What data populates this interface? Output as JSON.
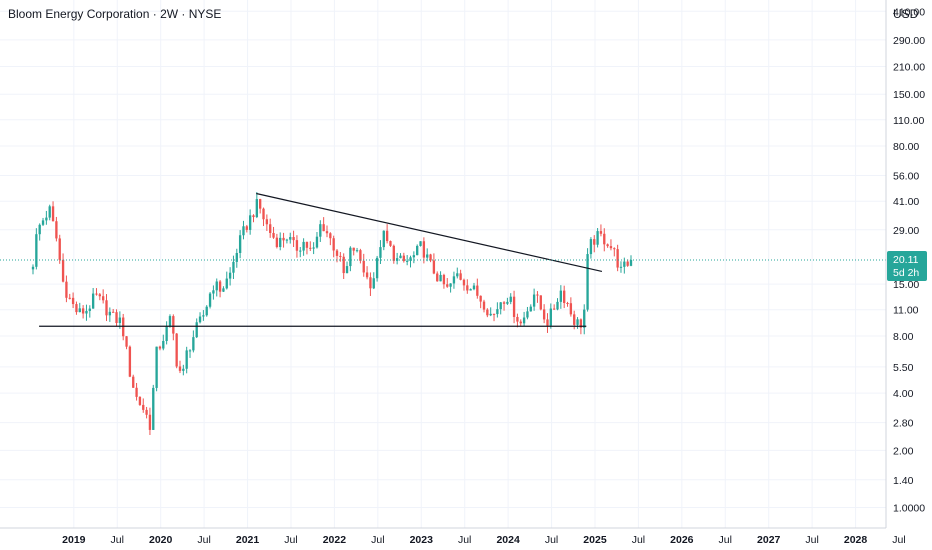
{
  "header": {
    "title": "Bloom Energy Corporation · 2W · NYSE",
    "currency": "USD"
  },
  "price_badge": {
    "price": "20.11",
    "countdown": "5d 2h",
    "color": "#26a69a"
  },
  "colors": {
    "up": "#26a69a",
    "down": "#ef5350",
    "grid": "#f0f3fa",
    "trendline": "#131722"
  },
  "chart_data": {
    "type": "candlestick",
    "title": "Bloom Energy Corporation · 2W · NYSE",
    "y_scale": "log",
    "y_unit": "USD",
    "y_ticks": [
      "410.00",
      "290.00",
      "210.00",
      "150.00",
      "110.00",
      "80.00",
      "56.00",
      "41.00",
      "29.00",
      "20.11",
      "15.00",
      "11.00",
      "8.00",
      "5.50",
      "4.00",
      "2.80",
      "2.00",
      "1.40",
      "1.0000"
    ],
    "y_tick_values": [
      410,
      290,
      210,
      150,
      110,
      80,
      56,
      41,
      29,
      15,
      11,
      8,
      5.5,
      4,
      2.8,
      2,
      1.4,
      1.0
    ],
    "ylim": [
      0.78,
      470
    ],
    "x_ticks": [
      {
        "label": "2019",
        "t": 2019.0
      },
      {
        "label": "Jul",
        "t": 2019.5
      },
      {
        "label": "2020",
        "t": 2020.0
      },
      {
        "label": "Jul",
        "t": 2020.5
      },
      {
        "label": "2021",
        "t": 2021.0
      },
      {
        "label": "Jul",
        "t": 2021.5
      },
      {
        "label": "2022",
        "t": 2022.0
      },
      {
        "label": "Jul",
        "t": 2022.5
      },
      {
        "label": "2023",
        "t": 2023.0
      },
      {
        "label": "Jul",
        "t": 2023.5
      },
      {
        "label": "2024",
        "t": 2024.0
      },
      {
        "label": "Jul",
        "t": 2024.5
      },
      {
        "label": "2025",
        "t": 2025.0
      },
      {
        "label": "Jul",
        "t": 2025.5
      },
      {
        "label": "2026",
        "t": 2026.0
      },
      {
        "label": "Jul",
        "t": 2026.5
      },
      {
        "label": "2027",
        "t": 2027.0
      },
      {
        "label": "Jul",
        "t": 2027.5
      },
      {
        "label": "2028",
        "t": 2028.0
      },
      {
        "label": "Jul",
        "t": 2028.5
      }
    ],
    "xlim": [
      2018.15,
      2028.88
    ],
    "grid": true,
    "last_price": 20.11,
    "trendlines": [
      {
        "t1": 2021.1,
        "p1": 45,
        "t2": 2025.08,
        "p2": 17.5,
        "kind": "descending resistance"
      },
      {
        "t1": 2018.6,
        "p1": 9.0,
        "t2": 2024.9,
        "p2": 9.0,
        "kind": "horizontal support"
      }
    ],
    "anchors": [
      [
        2018.53,
        19.5
      ],
      [
        2018.58,
        29.0
      ],
      [
        2018.65,
        33.0
      ],
      [
        2018.72,
        37.0
      ],
      [
        2018.8,
        26.0
      ],
      [
        2018.88,
        15.0
      ],
      [
        2018.97,
        12.0
      ],
      [
        2019.05,
        10.5
      ],
      [
        2019.15,
        11.0
      ],
      [
        2019.25,
        13.0
      ],
      [
        2019.35,
        11.5
      ],
      [
        2019.45,
        10.0
      ],
      [
        2019.55,
        9.5
      ],
      [
        2019.65,
        5.0
      ],
      [
        2019.72,
        3.8
      ],
      [
        2019.82,
        3.2
      ],
      [
        2019.88,
        2.7
      ],
      [
        2019.95,
        6.5
      ],
      [
        2020.05,
        8.2
      ],
      [
        2020.12,
        10.0
      ],
      [
        2020.18,
        6.0
      ],
      [
        2020.25,
        4.8
      ],
      [
        2020.3,
        6.5
      ],
      [
        2020.4,
        8.5
      ],
      [
        2020.5,
        10.5
      ],
      [
        2020.6,
        15.0
      ],
      [
        2020.7,
        14.0
      ],
      [
        2020.8,
        17.0
      ],
      [
        2020.88,
        23.0
      ],
      [
        2020.95,
        28.0
      ],
      [
        2021.05,
        35.0
      ],
      [
        2021.12,
        40.0
      ],
      [
        2021.2,
        32.0
      ],
      [
        2021.28,
        27.0
      ],
      [
        2021.36,
        25.0
      ],
      [
        2021.45,
        27.0
      ],
      [
        2021.55,
        23.0
      ],
      [
        2021.65,
        25.0
      ],
      [
        2021.75,
        21.5
      ],
      [
        2021.85,
        32.0
      ],
      [
        2021.95,
        26.0
      ],
      [
        2022.05,
        21.0
      ],
      [
        2022.12,
        16.0
      ],
      [
        2022.2,
        24.0
      ],
      [
        2022.3,
        20.0
      ],
      [
        2022.4,
        15.0
      ],
      [
        2022.47,
        17.0
      ],
      [
        2022.55,
        28.0
      ],
      [
        2022.62,
        24.0
      ],
      [
        2022.72,
        20.0
      ],
      [
        2022.82,
        19.5
      ],
      [
        2022.92,
        21.0
      ],
      [
        2023.0,
        24.0
      ],
      [
        2023.1,
        19.0
      ],
      [
        2023.2,
        16.0
      ],
      [
        2023.3,
        14.0
      ],
      [
        2023.42,
        17.0
      ],
      [
        2023.52,
        15.0
      ],
      [
        2023.6,
        14.0
      ],
      [
        2023.72,
        12.0
      ],
      [
        2023.82,
        10.0
      ],
      [
        2023.92,
        12.5
      ],
      [
        2024.0,
        13.0
      ],
      [
        2024.08,
        10.5
      ],
      [
        2024.15,
        9.2
      ],
      [
        2024.22,
        11.0
      ],
      [
        2024.3,
        13.5
      ],
      [
        2024.38,
        11.0
      ],
      [
        2024.45,
        9.5
      ],
      [
        2024.52,
        11.0
      ],
      [
        2024.6,
        14.0
      ],
      [
        2024.68,
        12.0
      ],
      [
        2024.75,
        9.8
      ],
      [
        2024.82,
        9.2
      ],
      [
        2024.87,
        9.5
      ],
      [
        2024.9,
        19.0
      ],
      [
        2024.96,
        25.0
      ],
      [
        2025.05,
        27.0
      ],
      [
        2025.15,
        25.0
      ],
      [
        2025.22,
        22.0
      ],
      [
        2025.3,
        17.5
      ],
      [
        2025.36,
        19.0
      ],
      [
        2025.42,
        20.11
      ]
    ]
  }
}
